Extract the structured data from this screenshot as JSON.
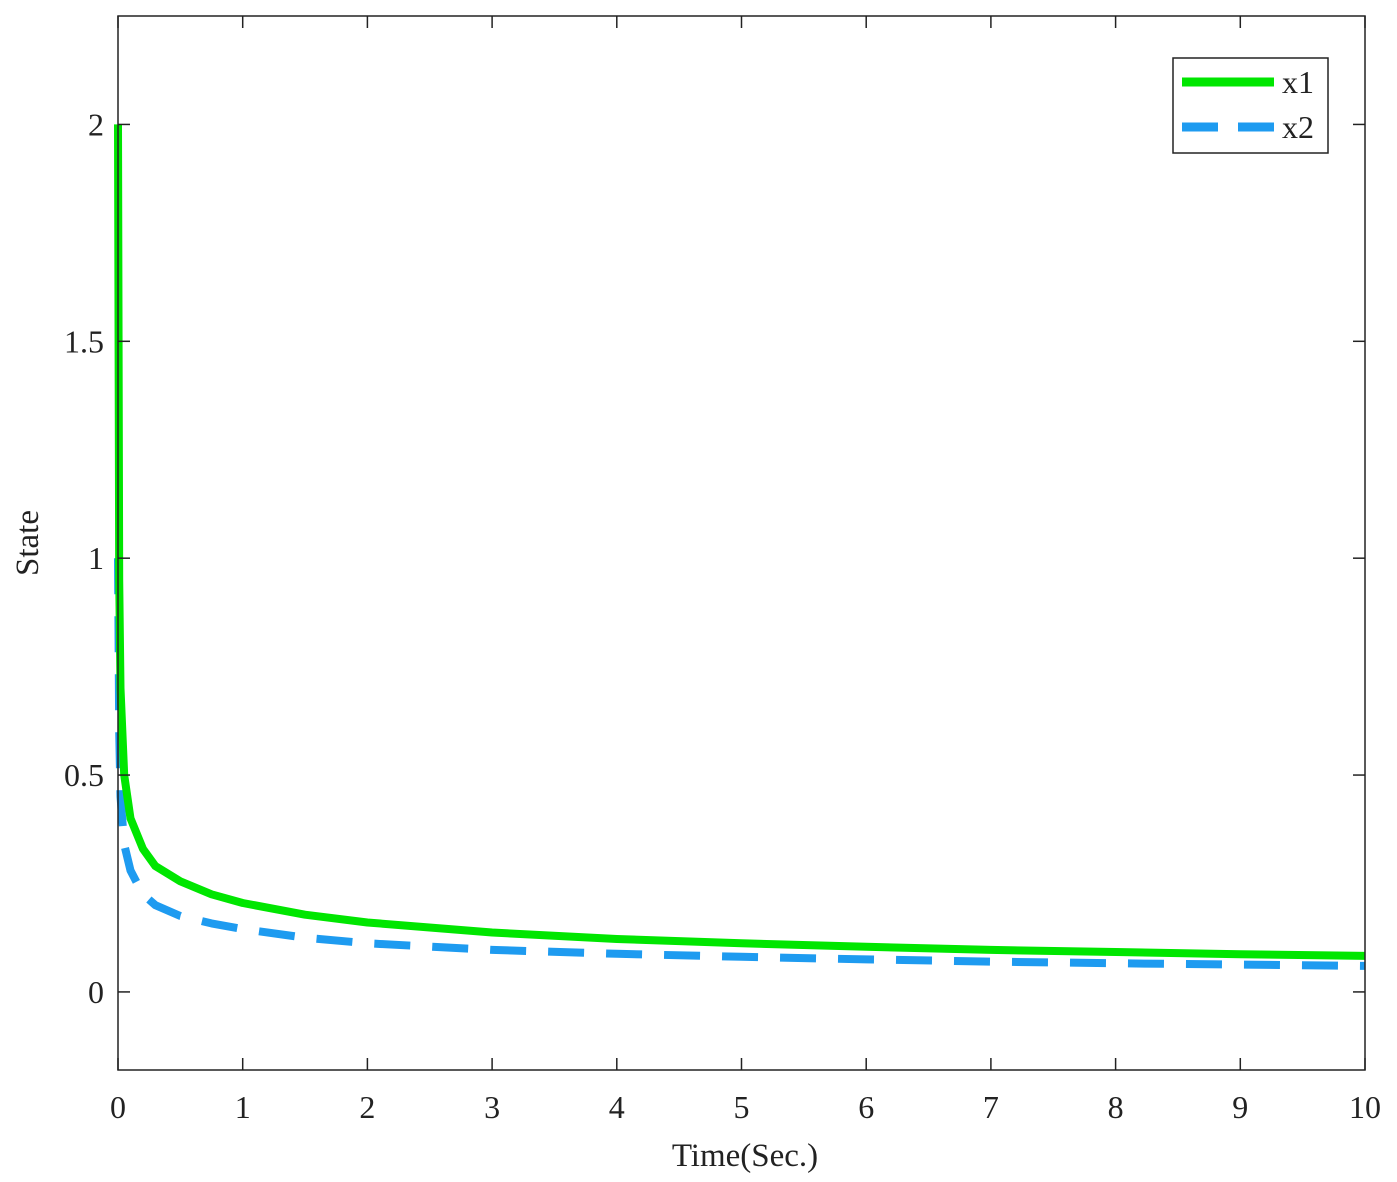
{
  "chart_data": {
    "type": "line",
    "xlabel": "Time(Sec.)",
    "ylabel": "State",
    "xlim": [
      0,
      10
    ],
    "ylim": [
      -0.18,
      2.25
    ],
    "xticks": [
      0,
      1,
      2,
      3,
      4,
      5,
      6,
      7,
      8,
      9,
      10
    ],
    "yticks": [
      0,
      0.5,
      1,
      1.5,
      2
    ],
    "xtick_labels": [
      "0",
      "1",
      "2",
      "3",
      "4",
      "5",
      "6",
      "7",
      "8",
      "9",
      "10"
    ],
    "ytick_labels": [
      "0",
      "0.5",
      "1",
      "1.5",
      "2"
    ],
    "grid": false,
    "legend_position": "top-right",
    "series": [
      {
        "name": "x1",
        "style": "solid",
        "color": "#00e600",
        "x": [
          0,
          0.01,
          0.02,
          0.05,
          0.1,
          0.2,
          0.3,
          0.5,
          0.75,
          1,
          1.5,
          2,
          3,
          4,
          5,
          6,
          7,
          8,
          9,
          10
        ],
        "y": [
          2.0,
          0.95,
          0.7,
          0.5,
          0.4,
          0.33,
          0.29,
          0.255,
          0.225,
          0.205,
          0.178,
          0.16,
          0.137,
          0.122,
          0.112,
          0.104,
          0.097,
          0.092,
          0.087,
          0.083
        ]
      },
      {
        "name": "x2",
        "style": "dashed",
        "color": "#1e9bf0",
        "x": [
          0,
          0.01,
          0.02,
          0.05,
          0.1,
          0.2,
          0.3,
          0.5,
          0.75,
          1,
          1.5,
          2,
          3,
          4,
          5,
          6,
          7,
          8,
          9,
          10
        ],
        "y": [
          1.0,
          0.6,
          0.45,
          0.34,
          0.28,
          0.225,
          0.2,
          0.175,
          0.158,
          0.145,
          0.125,
          0.112,
          0.097,
          0.088,
          0.081,
          0.075,
          0.07,
          0.066,
          0.063,
          0.06
        ]
      }
    ]
  }
}
